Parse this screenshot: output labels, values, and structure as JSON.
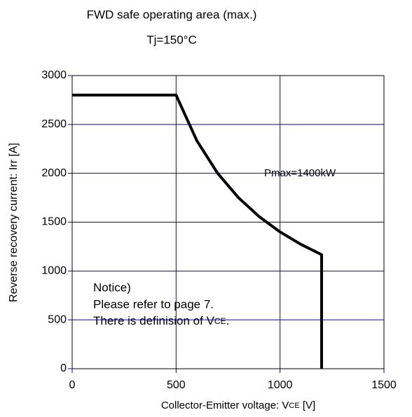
{
  "chart_data": {
    "type": "line",
    "title": "FWD safe operating area (max.)",
    "subtitle": "Tj=150°C",
    "xlabel": {
      "text": "Collector-Emitter voltage: V",
      "sub": "CE",
      "suffix": " [V]"
    },
    "ylabel": "Reverse recovery current: Irr [A]",
    "annotation": "Pmax=1400kW",
    "notice": [
      "Notice)",
      "Please refer to page 7.",
      {
        "text": "There is definision of V",
        "sub": "CE",
        "suffix": "."
      }
    ],
    "series": [
      {
        "color": "#000000",
        "x": [
          0,
          500,
          600,
          700,
          800,
          900,
          1000,
          1100,
          1200,
          1200
        ],
        "values": [
          2800,
          2800,
          2333,
          2000,
          1750,
          1556,
          1400,
          1273,
          1167,
          0
        ]
      }
    ],
    "xlim": [
      0,
      1500
    ],
    "xticks": [
      0,
      500,
      1000,
      1500
    ],
    "ylim": [
      0,
      3000
    ],
    "yticks": [
      0,
      500,
      1000,
      1500,
      2000,
      2500,
      3000
    ],
    "grid": true,
    "grid_color": "#0000cc"
  }
}
